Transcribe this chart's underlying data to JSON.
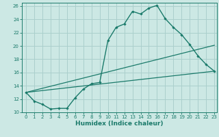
{
  "xlabel": "Humidex (Indice chaleur)",
  "bg_color": "#cce8e4",
  "grid_color": "#aacfcc",
  "line_color": "#1a7a6a",
  "xlim": [
    -0.5,
    23.3
  ],
  "ylim": [
    10,
    26.5
  ],
  "xticks": [
    0,
    1,
    2,
    3,
    4,
    5,
    6,
    7,
    8,
    9,
    10,
    11,
    12,
    13,
    14,
    15,
    16,
    17,
    18,
    19,
    20,
    21,
    22,
    23
  ],
  "yticks": [
    10,
    12,
    14,
    16,
    18,
    20,
    22,
    24,
    26
  ],
  "line1_x": [
    0,
    1,
    2,
    3,
    4,
    5,
    6,
    7,
    8,
    9,
    10,
    11,
    12,
    13,
    14,
    15,
    16,
    17,
    18,
    19,
    20,
    21,
    22,
    23
  ],
  "line1_y": [
    13.0,
    11.7,
    11.2,
    10.5,
    10.6,
    10.6,
    12.2,
    13.5,
    14.3,
    14.5,
    20.8,
    22.8,
    23.3,
    25.2,
    24.8,
    25.7,
    26.1,
    24.1,
    22.8,
    21.7,
    20.2,
    18.5,
    17.2,
    16.2
  ],
  "line2_x": [
    0,
    23
  ],
  "line2_y": [
    13.0,
    16.2
  ],
  "line3_x": [
    0,
    23
  ],
  "line3_y": [
    13.0,
    20.1
  ],
  "xlabel_fontsize": 6.5,
  "tick_fontsize": 5.0
}
